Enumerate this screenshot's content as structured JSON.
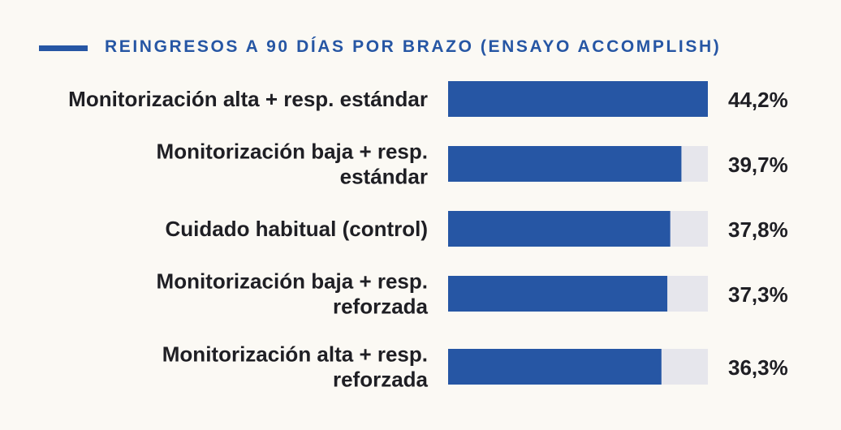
{
  "chart_data": {
    "type": "bar",
    "orientation": "horizontal",
    "title": "REINGRESOS A 90 DÍAS POR BRAZO (ENSAYO ACCOMPLISH)",
    "categories": [
      [
        "Monitorización alta + resp. estándar"
      ],
      [
        "Monitorización baja + resp.",
        "estándar"
      ],
      [
        "Cuidado habitual (control)"
      ],
      [
        "Monitorización baja + resp.",
        "reforzada"
      ],
      [
        "Monitorización alta + resp.",
        "reforzada"
      ]
    ],
    "values": [
      44.2,
      39.7,
      37.8,
      37.3,
      36.3
    ],
    "value_labels": [
      "44,2%",
      "39,7%",
      "37,8%",
      "37,3%",
      "36,3%"
    ],
    "xlim": [
      0,
      44.2
    ],
    "unit": "%",
    "grid": false,
    "legend": "none",
    "colors": {
      "bar": "#2656a4",
      "track": "#e6e6ec",
      "text": "#1f1f24",
      "title": "#2656a4",
      "background": "#fbf9f4"
    }
  }
}
